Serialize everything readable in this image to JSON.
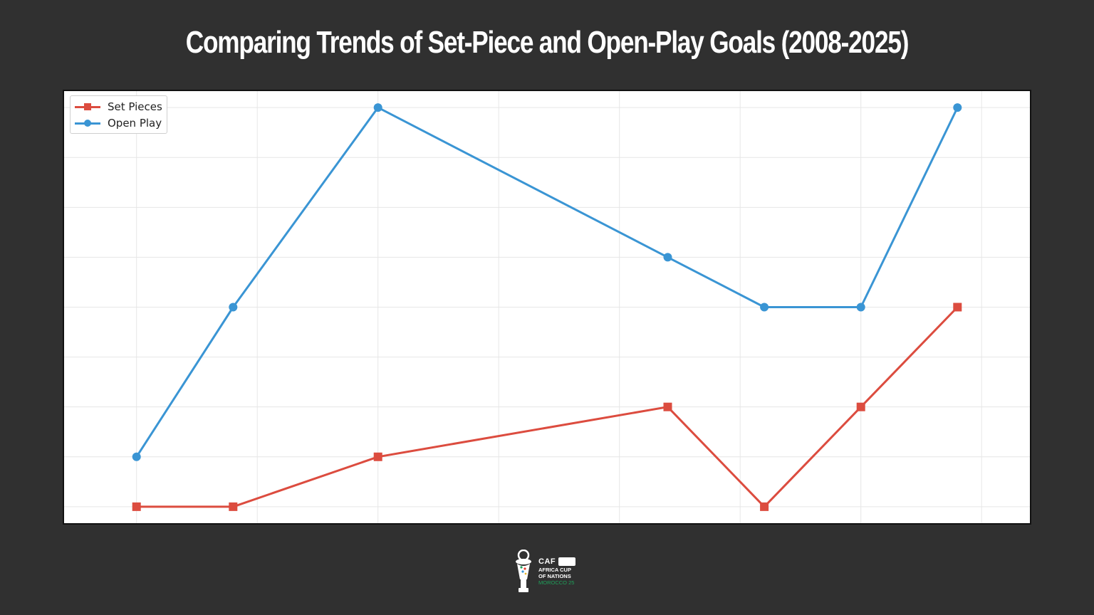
{
  "title": "Comparing Trends of Set-Piece and Open-Play Goals (2008-2025)",
  "chart_data": {
    "type": "line",
    "title": "Comparing Trends of Set-Piece and Open-Play Goals (2008-2025)",
    "xlabel": "",
    "ylabel": "",
    "x": [
      2008,
      2010,
      2013,
      2019,
      2021,
      2023,
      2025
    ],
    "x_range": [
      2006.5,
      2026.5
    ],
    "x_gridlines": [
      2008,
      2010.5,
      2013,
      2015.5,
      2018,
      2020.5,
      2023,
      2025.5
    ],
    "ylim": [
      -0.33,
      8.33
    ],
    "y_gridlines": [
      0,
      1,
      2,
      3,
      4,
      5,
      6,
      7,
      8
    ],
    "grid": true,
    "tick_labels_shown": false,
    "legend": "top-left",
    "series": [
      {
        "name": "Set Pieces",
        "color": "#dc4c3f",
        "marker": "square",
        "values": [
          0,
          0,
          1,
          2,
          0,
          2,
          4
        ]
      },
      {
        "name": "Open Play",
        "color": "#3a95d4",
        "marker": "circle",
        "values": [
          1,
          4,
          8,
          5,
          4,
          4,
          8
        ]
      }
    ]
  },
  "logo": {
    "org": "CAF",
    "line1": "AFRICA CUP",
    "line2": "OF NATIONS",
    "line3": "MOROCCO 25"
  }
}
